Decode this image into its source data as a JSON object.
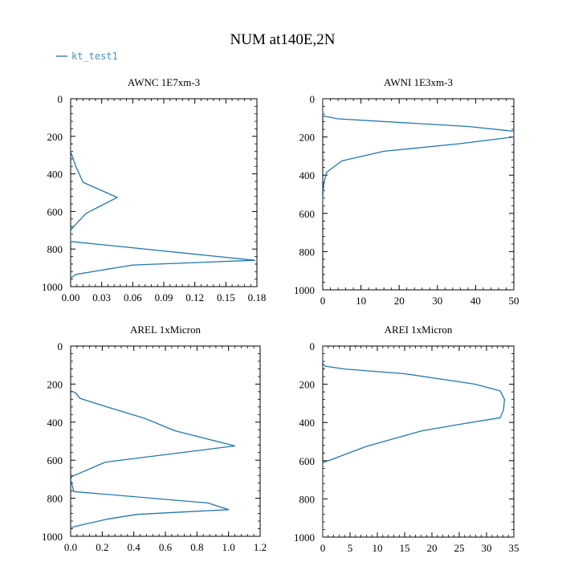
{
  "page": {
    "title": "NUM at140E,2N",
    "legend": {
      "label": "kt_test1",
      "color": "#1f77b4"
    }
  },
  "chart_data": [
    {
      "type": "line",
      "title": "AWNC  1E7xm-3",
      "xlabel": "",
      "ylabel": "",
      "xlim": [
        0,
        0.18
      ],
      "ylim": [
        1000,
        0
      ],
      "xticks": [
        0,
        0.03,
        0.06,
        0.09,
        0.12,
        0.15,
        0.18
      ],
      "xtick_labels": [
        "0.00",
        "0.03",
        "0.06",
        "0.09",
        "0.12",
        "0.15",
        "0.18"
      ],
      "yticks": [
        0,
        200,
        400,
        600,
        800,
        1000
      ],
      "ytick_labels": [
        "0",
        "200",
        "400",
        "600",
        "800",
        "1000"
      ],
      "series": [
        {
          "name": "kt_test1",
          "color": "#1f77b4",
          "x": [
            0,
            0,
            0.005,
            0.012,
            0.045,
            0.015,
            0.003,
            0,
            0,
            0.178,
            0.06,
            0.005,
            0
          ],
          "y": [
            250,
            280,
            360,
            445,
            525,
            610,
            680,
            700,
            760,
            860,
            885,
            935,
            955
          ]
        }
      ]
    },
    {
      "type": "line",
      "title": "AWNI  1E3xm-3",
      "xlabel": "",
      "ylabel": "",
      "xlim": [
        0,
        50
      ],
      "ylim": [
        1000,
        0
      ],
      "xticks": [
        0,
        10,
        20,
        30,
        40,
        50
      ],
      "xtick_labels": [
        "0",
        "10",
        "20",
        "30",
        "40",
        "50"
      ],
      "yticks": [
        0,
        200,
        400,
        600,
        800,
        1000
      ],
      "ytick_labels": [
        "0",
        "200",
        "400",
        "600",
        "800",
        "1000"
      ],
      "series": [
        {
          "name": "kt_test1",
          "color": "#1f77b4",
          "x": [
            0,
            0,
            4,
            38,
            50,
            50,
            36,
            16,
            5,
            1,
            0.3,
            0,
            0
          ],
          "y": [
            0,
            90,
            105,
            145,
            170,
            200,
            235,
            275,
            325,
            385,
            440,
            520,
            560
          ]
        }
      ]
    },
    {
      "type": "line",
      "title": "AREL  1xMicron",
      "xlabel": "",
      "ylabel": "",
      "xlim": [
        0,
        1.2
      ],
      "ylim": [
        1000,
        0
      ],
      "xticks": [
        0,
        0.2,
        0.4,
        0.6,
        0.8,
        1.0,
        1.2
      ],
      "xtick_labels": [
        "0.0",
        "0.2",
        "0.4",
        "0.6",
        "0.8",
        "1.0",
        "1.2"
      ],
      "yticks": [
        0,
        200,
        400,
        600,
        800,
        1000
      ],
      "ytick_labels": [
        "0",
        "200",
        "400",
        "600",
        "800",
        "1000"
      ],
      "series": [
        {
          "name": "kt_test1",
          "color": "#1f77b4",
          "x": [
            0,
            0.03,
            0.06,
            0.23,
            0.47,
            0.66,
            1.04,
            0.22,
            0.01,
            0,
            0.02,
            0.87,
            1.0,
            0.42,
            0.23,
            0.07,
            0
          ],
          "y": [
            235,
            245,
            275,
            320,
            380,
            445,
            525,
            610,
            685,
            700,
            765,
            825,
            860,
            885,
            910,
            940,
            955
          ]
        }
      ]
    },
    {
      "type": "line",
      "title": "AREI  1xMicron",
      "xlabel": "",
      "ylabel": "",
      "xlim": [
        0,
        35
      ],
      "ylim": [
        1000,
        0
      ],
      "xticks": [
        0,
        5,
        10,
        15,
        20,
        25,
        30,
        35
      ],
      "xtick_labels": [
        "0",
        "5",
        "10",
        "15",
        "20",
        "25",
        "30",
        "35"
      ],
      "yticks": [
        0,
        200,
        400,
        600,
        800,
        1000
      ],
      "ytick_labels": [
        "0",
        "200",
        "400",
        "600",
        "800",
        "1000"
      ],
      "series": [
        {
          "name": "kt_test1",
          "color": "#1f77b4",
          "x": [
            0,
            0,
            0.4,
            4,
            15,
            21,
            28,
            32.5,
            33.3,
            33.1,
            32.5,
            25,
            18,
            8,
            1.5,
            0,
            0
          ],
          "y": [
            0,
            90,
            105,
            120,
            145,
            170,
            200,
            235,
            280,
            335,
            375,
            410,
            445,
            525,
            595,
            610,
            1000
          ]
        }
      ]
    }
  ]
}
